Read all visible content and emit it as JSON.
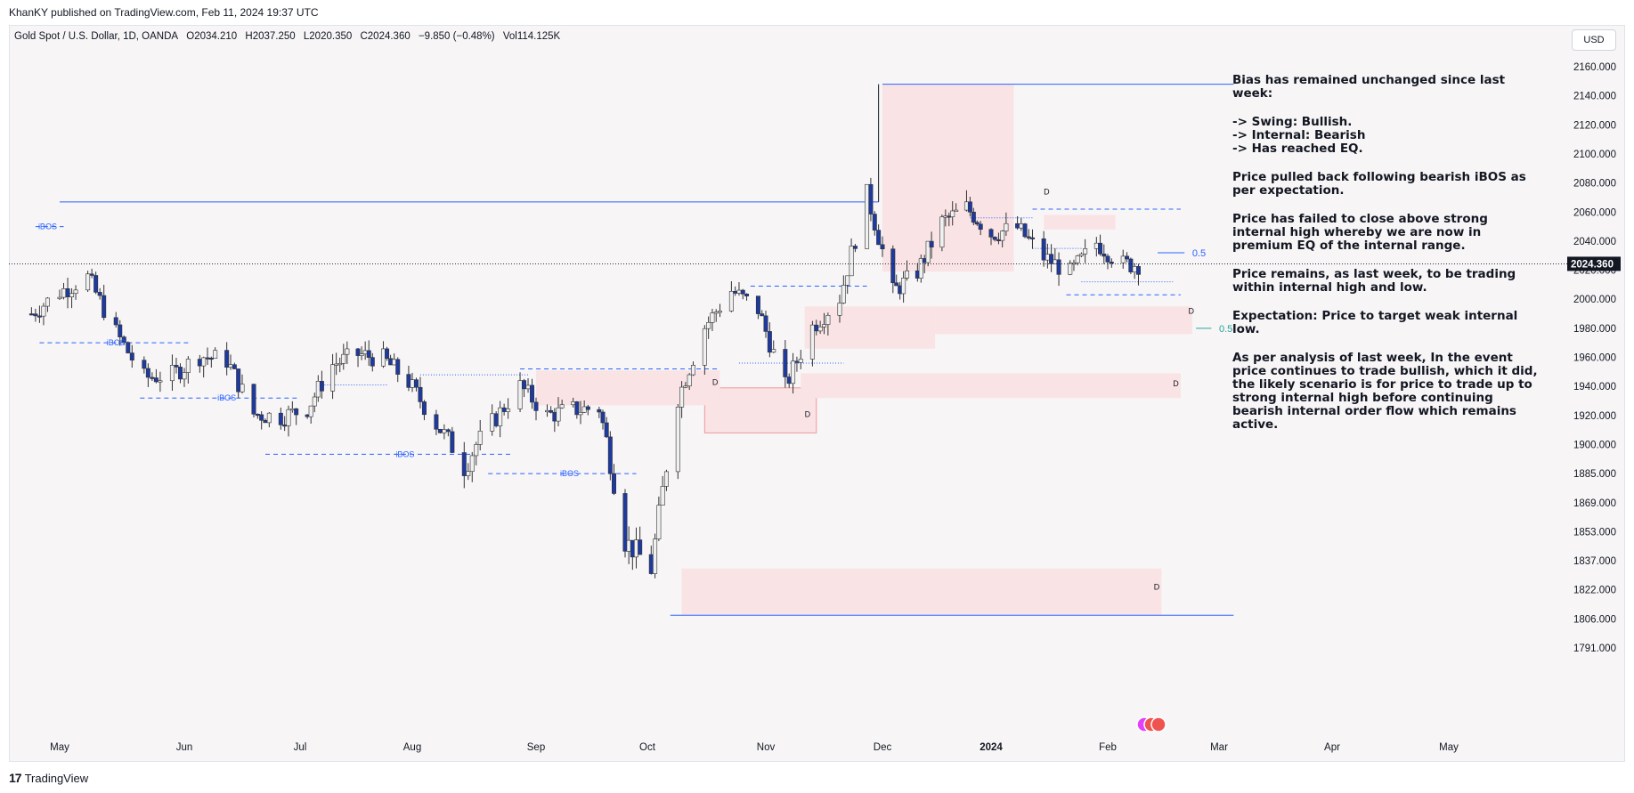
{
  "header": {
    "credit": "KhanKY published on TradingView.com, Feb 11, 2024 19:37 UTC",
    "symbol": "Gold Spot / U.S. Dollar, 1D, OANDA",
    "open": "O2034.210",
    "high": "H2037.250",
    "low": "L2020.350",
    "close": "C2024.360",
    "change": "−9.850 (−0.48%)",
    "volume": "Vol114.125K"
  },
  "toolbar": {
    "currency_button": "USD"
  },
  "footer": {
    "brand": "TradingView"
  },
  "notes": [
    "Bias has remained unchanged since last week:",
    "-> Swing: Bullish.\n-> Internal: Bearish\n-> Has reached EQ.",
    "Price pulled back following bearish iBOS as per expectation.",
    "Price has failed to close above strong internal high whereby we are now in premium EQ of the internal range.",
    "Price remains, as last week, to be trading within internal high and low.",
    "Expectation: Price to target weak internal low.",
    "As per analysis of last week, In the event price continues to trade bullish, which it did, the likely scenario is for price to trade up to strong internal high before continuing bearish internal order flow which remains active."
  ],
  "colors": {
    "bull_candle": "#f0f0f0",
    "bear_candle": "#1e3a9e",
    "wick": "#333333",
    "structure_line": "#2962ff",
    "zone_fill": "#f9e3e5",
    "zone_border": "#ef9a9a",
    "eq_label": "#26a69a",
    "last_price_bg": "#131722"
  },
  "chart_data": {
    "type": "candlestick",
    "symbol": "XAUUSD",
    "timeframe": "1D",
    "last_price": "2024.360",
    "y_ticks": [
      "2160.000",
      "2140.000",
      "2120.000",
      "2100.000",
      "2080.000",
      "2060.000",
      "2040.000",
      "2020.000",
      "2000.000",
      "1980.000",
      "1960.000",
      "1940.000",
      "1920.000",
      "1900.000",
      "1885.000",
      "1869.000",
      "1853.000",
      "1837.000",
      "1822.000",
      "1806.000",
      "1791.000"
    ],
    "x_ticks": [
      {
        "label": "May",
        "date": "2023-05-01"
      },
      {
        "label": "Jun",
        "date": "2023-06-01"
      },
      {
        "label": "Jul",
        "date": "2023-07-01"
      },
      {
        "label": "Aug",
        "date": "2023-08-01"
      },
      {
        "label": "Sep",
        "date": "2023-09-01"
      },
      {
        "label": "Oct",
        "date": "2023-10-01"
      },
      {
        "label": "Nov",
        "date": "2023-11-01"
      },
      {
        "label": "Dec",
        "date": "2023-12-01"
      },
      {
        "label": "2024",
        "date": "2024-01-01"
      },
      {
        "label": "Feb",
        "date": "2024-02-01"
      },
      {
        "label": "Mar",
        "date": "2024-03-01"
      },
      {
        "label": "Apr",
        "date": "2024-04-01"
      },
      {
        "label": "May",
        "date": "2024-05-01"
      }
    ],
    "closes": [
      [
        "2023-04-24",
        1990
      ],
      [
        "2023-05-01",
        2005
      ],
      [
        "2023-05-08",
        2015
      ],
      [
        "2023-05-15",
        1977
      ],
      [
        "2023-05-22",
        1946
      ],
      [
        "2023-05-29",
        1948
      ],
      [
        "2023-06-05",
        1961
      ],
      [
        "2023-06-12",
        1958
      ],
      [
        "2023-06-19",
        1921
      ],
      [
        "2023-06-26",
        1919
      ],
      [
        "2023-07-03",
        1925
      ],
      [
        "2023-07-10",
        1955
      ],
      [
        "2023-07-17",
        1962
      ],
      [
        "2023-07-24",
        1959
      ],
      [
        "2023-07-31",
        1943
      ],
      [
        "2023-08-07",
        1914
      ],
      [
        "2023-08-14",
        1889
      ],
      [
        "2023-08-21",
        1915
      ],
      [
        "2023-08-28",
        1940
      ],
      [
        "2023-09-04",
        1920
      ],
      [
        "2023-09-11",
        1924
      ],
      [
        "2023-09-18",
        1925
      ],
      [
        "2023-09-25",
        1848
      ],
      [
        "2023-10-02",
        1833
      ],
      [
        "2023-10-09",
        1932
      ],
      [
        "2023-10-16",
        1981
      ],
      [
        "2023-10-23",
        2006
      ],
      [
        "2023-10-30",
        1993
      ],
      [
        "2023-11-06",
        1940
      ],
      [
        "2023-11-13",
        1981
      ],
      [
        "2023-11-20",
        2001
      ],
      [
        "2023-11-27",
        2072
      ],
      [
        "2023-12-04",
        2005
      ],
      [
        "2023-12-11",
        2019
      ],
      [
        "2023-12-18",
        2053
      ],
      [
        "2023-12-25",
        2063
      ],
      [
        "2024-01-01",
        2045
      ],
      [
        "2024-01-08",
        2049
      ],
      [
        "2024-01-15",
        2029
      ],
      [
        "2024-01-22",
        2018
      ],
      [
        "2024-01-29",
        2039
      ],
      [
        "2024-02-05",
        2024
      ]
    ],
    "structure_labels": [
      "iBOS",
      "iBOS",
      "iBOS",
      "iBOS",
      "iBOS"
    ],
    "zone_labels": [
      "D",
      "D",
      "D",
      "D",
      "D",
      "D"
    ],
    "eq_labels": [
      "0.5",
      "0.5"
    ]
  }
}
